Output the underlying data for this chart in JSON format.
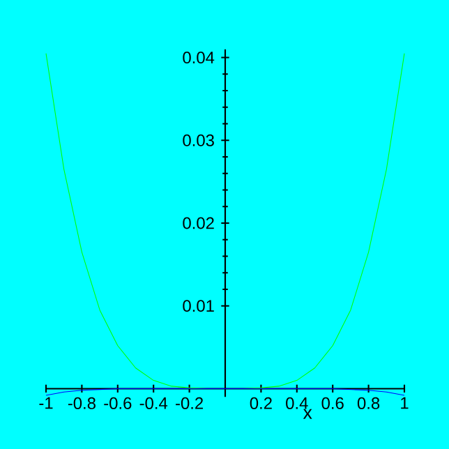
{
  "chart_data": {
    "type": "line",
    "xlabel": "x",
    "x": [
      -1,
      -0.9,
      -0.8,
      -0.7,
      -0.6,
      -0.5,
      -0.4,
      -0.3,
      -0.2,
      -0.1,
      0,
      0.1,
      0.2,
      0.3,
      0.4,
      0.5,
      0.6,
      0.7,
      0.8,
      0.9,
      1
    ],
    "series": [
      {
        "color": "#00ff00",
        "values": [
          0.0405,
          0.0265,
          0.0165,
          0.0095,
          0.0052,
          0.0025,
          0.001,
          0.0003,
          0.0001,
          0,
          0,
          0,
          0.0001,
          0.0003,
          0.001,
          0.0025,
          0.0052,
          0.0095,
          0.0165,
          0.0265,
          0.0405
        ]
      },
      {
        "color": "#0000ff",
        "values": [
          -0.0008,
          -0.0004,
          -0.0002,
          -0.0001,
          0,
          0,
          0,
          0,
          0,
          0,
          0,
          0,
          0,
          0,
          0,
          0,
          0,
          -0.0001,
          -0.0002,
          -0.0004,
          -0.0008
        ]
      }
    ],
    "xlim": [
      -1,
      1
    ],
    "ylim": [
      -0.001,
      0.041
    ],
    "xticks": [
      -1,
      -0.8,
      -0.6,
      -0.4,
      -0.2,
      0.2,
      0.4,
      0.6,
      0.8,
      1
    ],
    "yticks": [
      0.01,
      0.02,
      0.03,
      0.04
    ]
  }
}
